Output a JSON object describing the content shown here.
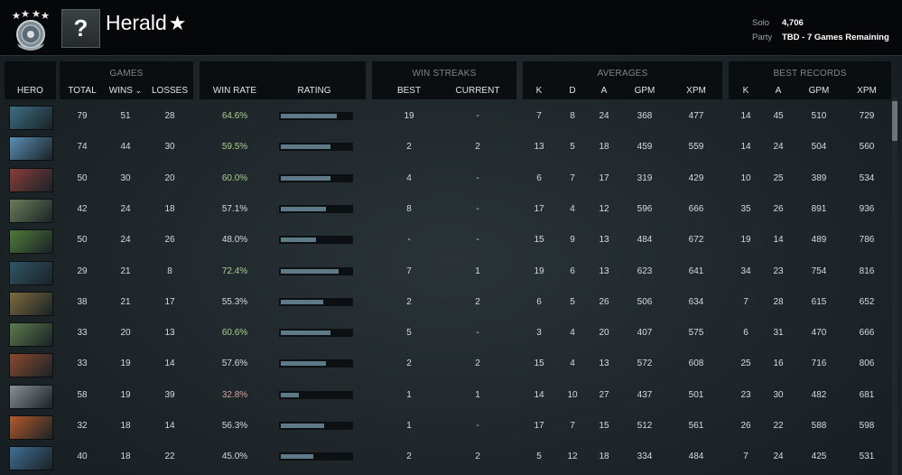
{
  "header": {
    "rank_title": "Herald",
    "unknown_glyph": "?",
    "solo_label": "Solo",
    "solo_value": "4,706",
    "party_label": "Party",
    "party_value": "TBD - 7 Games Remaining",
    "icons": {
      "medal": "herald-medal-icon",
      "star": "star-icon"
    }
  },
  "columns": {
    "hero": "HERO",
    "games_group": "GAMES",
    "total": "TOTAL",
    "wins": "WINS",
    "losses": "LOSSES",
    "win_rate": "WIN RATE",
    "rating": "RATING",
    "streaks_group": "WIN STREAKS",
    "best": "BEST",
    "current": "CURRENT",
    "averages_group": "AVERAGES",
    "k": "K",
    "d": "D",
    "a": "A",
    "gpm": "GPM",
    "xpm": "XPM",
    "records_group": "BEST RECORDS",
    "rk": "K",
    "ra": "A",
    "rgpm": "GPM",
    "rxpm": "XPM",
    "sort_icon": "chevron-down-icon"
  },
  "colors": {
    "win_rate_high": "#a9cf8c",
    "win_rate_low": "#d9a3a3",
    "bar_fill": "#5f7a87"
  },
  "rows": [
    {
      "hero_color": "#3e6e84",
      "total": "79",
      "wins": "51",
      "losses": "28",
      "win_rate": "64.6%",
      "rating": 0.8,
      "best": "19",
      "current": "-",
      "k": "7",
      "d": "8",
      "a": "24",
      "gpm": "368",
      "xpm": "477",
      "rk": "14",
      "ra": "45",
      "rgpm": "510",
      "rxpm": "729"
    },
    {
      "hero_color": "#5b8fb6",
      "total": "74",
      "wins": "44",
      "losses": "30",
      "win_rate": "59.5%",
      "rating": 0.7,
      "best": "2",
      "current": "2",
      "k": "13",
      "d": "5",
      "a": "18",
      "gpm": "459",
      "xpm": "559",
      "rk": "14",
      "ra": "24",
      "rgpm": "504",
      "rxpm": "560"
    },
    {
      "hero_color": "#8a3d3b",
      "total": "50",
      "wins": "30",
      "losses": "20",
      "win_rate": "60.0%",
      "rating": 0.7,
      "best": "4",
      "current": "-",
      "k": "6",
      "d": "7",
      "a": "17",
      "gpm": "319",
      "xpm": "429",
      "rk": "10",
      "ra": "25",
      "rgpm": "389",
      "rxpm": "534"
    },
    {
      "hero_color": "#6a7d5a",
      "total": "42",
      "wins": "24",
      "losses": "18",
      "win_rate": "57.1%",
      "rating": 0.64,
      "best": "8",
      "current": "-",
      "k": "17",
      "d": "4",
      "a": "12",
      "gpm": "596",
      "xpm": "666",
      "rk": "35",
      "ra": "26",
      "rgpm": "891",
      "rxpm": "936"
    },
    {
      "hero_color": "#4f7a3a",
      "total": "50",
      "wins": "24",
      "losses": "26",
      "win_rate": "48.0%",
      "rating": 0.5,
      "best": "-",
      "current": "-",
      "k": "15",
      "d": "9",
      "a": "13",
      "gpm": "484",
      "xpm": "672",
      "rk": "19",
      "ra": "14",
      "rgpm": "489",
      "rxpm": "786"
    },
    {
      "hero_color": "#2f5666",
      "total": "29",
      "wins": "21",
      "losses": "8",
      "win_rate": "72.4%",
      "rating": 0.82,
      "best": "7",
      "current": "1",
      "k": "19",
      "d": "6",
      "a": "13",
      "gpm": "623",
      "xpm": "641",
      "rk": "34",
      "ra": "23",
      "rgpm": "754",
      "rxpm": "816"
    },
    {
      "hero_color": "#7d6a3e",
      "total": "38",
      "wins": "21",
      "losses": "17",
      "win_rate": "55.3%",
      "rating": 0.6,
      "best": "2",
      "current": "2",
      "k": "6",
      "d": "5",
      "a": "26",
      "gpm": "506",
      "xpm": "634",
      "rk": "7",
      "ra": "28",
      "rgpm": "615",
      "rxpm": "652"
    },
    {
      "hero_color": "#5c7a4d",
      "total": "33",
      "wins": "20",
      "losses": "13",
      "win_rate": "60.6%",
      "rating": 0.7,
      "best": "5",
      "current": "-",
      "k": "3",
      "d": "4",
      "a": "20",
      "gpm": "407",
      "xpm": "575",
      "rk": "6",
      "ra": "31",
      "rgpm": "470",
      "rxpm": "666"
    },
    {
      "hero_color": "#8a4a2e",
      "total": "33",
      "wins": "19",
      "losses": "14",
      "win_rate": "57.6%",
      "rating": 0.64,
      "best": "2",
      "current": "2",
      "k": "15",
      "d": "4",
      "a": "13",
      "gpm": "572",
      "xpm": "608",
      "rk": "25",
      "ra": "16",
      "rgpm": "716",
      "rxpm": "806"
    },
    {
      "hero_color": "#8b8f93",
      "total": "58",
      "wins": "19",
      "losses": "39",
      "win_rate": "32.8%",
      "rating": 0.25,
      "best": "1",
      "current": "1",
      "k": "14",
      "d": "10",
      "a": "27",
      "gpm": "437",
      "xpm": "501",
      "rk": "23",
      "ra": "30",
      "rgpm": "482",
      "rxpm": "681"
    },
    {
      "hero_color": "#b35a2a",
      "total": "32",
      "wins": "18",
      "losses": "14",
      "win_rate": "56.3%",
      "rating": 0.62,
      "best": "1",
      "current": "-",
      "k": "17",
      "d": "7",
      "a": "15",
      "gpm": "512",
      "xpm": "561",
      "rk": "26",
      "ra": "22",
      "rgpm": "588",
      "rxpm": "598"
    },
    {
      "hero_color": "#3f6f95",
      "total": "40",
      "wins": "18",
      "losses": "22",
      "win_rate": "45.0%",
      "rating": 0.46,
      "best": "2",
      "current": "2",
      "k": "5",
      "d": "12",
      "a": "18",
      "gpm": "334",
      "xpm": "484",
      "rk": "7",
      "ra": "24",
      "rgpm": "425",
      "rxpm": "531"
    }
  ]
}
